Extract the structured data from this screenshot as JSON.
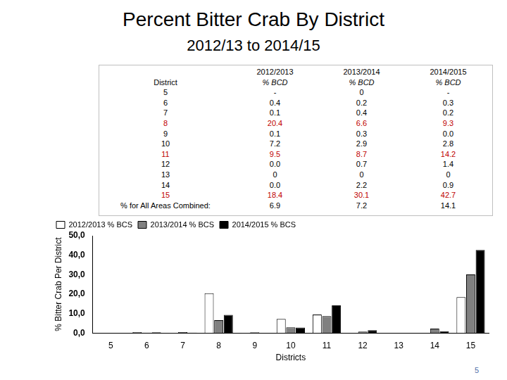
{
  "header": {
    "title": "Percent Bitter Crab By District",
    "subtitle": "2012/13 to 2014/15"
  },
  "table": {
    "first_header": "District",
    "columns": [
      {
        "name": "2012/2013",
        "unit": "% BCD"
      },
      {
        "name": "2013/2014",
        "unit": "% BCD"
      },
      {
        "name": "2014/2015",
        "unit": "% BCD"
      }
    ],
    "rows": [
      {
        "district": "5",
        "values": [
          "-",
          "0",
          "-"
        ],
        "highlight": false
      },
      {
        "district": "6",
        "values": [
          "0.4",
          "0.2",
          "0.3"
        ],
        "highlight": false
      },
      {
        "district": "7",
        "values": [
          "0.1",
          "0.4",
          "0.2"
        ],
        "highlight": false
      },
      {
        "district": "8",
        "values": [
          "20.4",
          "6.6",
          "9.3"
        ],
        "highlight": true
      },
      {
        "district": "9",
        "values": [
          "0.1",
          "0.3",
          "0.0"
        ],
        "highlight": false
      },
      {
        "district": "10",
        "values": [
          "7.2",
          "2.9",
          "2.8"
        ],
        "highlight": false
      },
      {
        "district": "11",
        "values": [
          "9.5",
          "8.7",
          "14.2"
        ],
        "highlight": true
      },
      {
        "district": "12",
        "values": [
          "0.0",
          "0.7",
          "1.4"
        ],
        "highlight": false
      },
      {
        "district": "13",
        "values": [
          "0",
          "0",
          "0"
        ],
        "highlight": false
      },
      {
        "district": "14",
        "values": [
          "0.0",
          "2.2",
          "0.9"
        ],
        "highlight": false
      },
      {
        "district": "15",
        "values": [
          "18.4",
          "30.1",
          "42.7"
        ],
        "highlight": true
      }
    ],
    "total": {
      "label": "% for All Areas Combined:",
      "values": [
        "6.9",
        "7.2",
        "14.1"
      ]
    }
  },
  "chart_data": {
    "type": "bar",
    "y_label": "% Bitter Crab Per District",
    "x_label": "Districts",
    "categories": [
      "5",
      "6",
      "7",
      "8",
      "9",
      "10",
      "11",
      "12",
      "13",
      "14",
      "15"
    ],
    "series": [
      {
        "name": "2012/2013 % BCS",
        "color": "#ffffff",
        "values": [
          null,
          0.4,
          0.1,
          20.4,
          0.1,
          7.2,
          9.5,
          0.0,
          0,
          0.0,
          18.4
        ]
      },
      {
        "name": "2013/2014 % BCS",
        "color": "#808080",
        "values": [
          0,
          0.2,
          0.4,
          6.6,
          0.3,
          2.9,
          8.7,
          0.7,
          0,
          2.2,
          30.1
        ]
      },
      {
        "name": "2014/2015 % BCS",
        "color": "#000000",
        "values": [
          null,
          0.3,
          0.2,
          9.3,
          0.0,
          2.8,
          14.2,
          1.4,
          0,
          0.9,
          42.7
        ]
      }
    ],
    "ylim": [
      0,
      50
    ],
    "yticks": [
      {
        "value": 0,
        "label": "0,0"
      },
      {
        "value": 10,
        "label": "10,0"
      },
      {
        "value": 20,
        "label": "20,0"
      },
      {
        "value": 30,
        "label": "30,0"
      },
      {
        "value": 40,
        "label": "40,0"
      },
      {
        "value": 50,
        "label": "50,0"
      }
    ],
    "grid": false,
    "legend": "top-left",
    "data_labels": false,
    "tick_labels": true
  },
  "page_number": "5"
}
